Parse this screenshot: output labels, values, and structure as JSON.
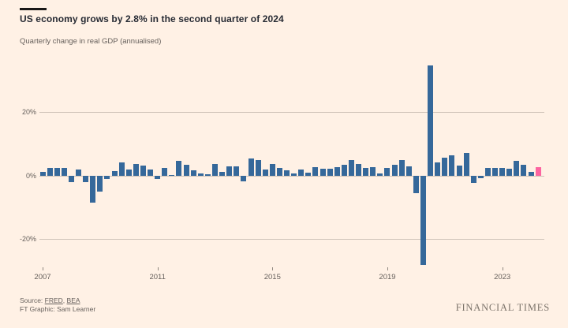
{
  "page": {
    "background_color": "#fff1e5",
    "accent_black": "#1a1817"
  },
  "header": {
    "title": "US economy grows by 2.8% in the second quarter of 2024",
    "subtitle": "Quarterly change in real GDP (annualised)"
  },
  "chart_data": {
    "type": "bar",
    "title": "US economy grows by 2.8% in the second quarter of 2024",
    "subtitle": "Quarterly change in real GDP (annualised)",
    "unit": "%",
    "start_year": 2007,
    "start_quarter": 1,
    "end_label": "2024 Q2",
    "quarters": [
      "2007 Q1",
      "2007 Q2",
      "2007 Q3",
      "2007 Q4",
      "2008 Q1",
      "2008 Q2",
      "2008 Q3",
      "2008 Q4",
      "2009 Q1",
      "2009 Q2",
      "2009 Q3",
      "2009 Q4",
      "2010 Q1",
      "2010 Q2",
      "2010 Q3",
      "2010 Q4",
      "2011 Q1",
      "2011 Q2",
      "2011 Q3",
      "2011 Q4",
      "2012 Q1",
      "2012 Q2",
      "2012 Q3",
      "2012 Q4",
      "2013 Q1",
      "2013 Q2",
      "2013 Q3",
      "2013 Q4",
      "2014 Q1",
      "2014 Q2",
      "2014 Q3",
      "2014 Q4",
      "2015 Q1",
      "2015 Q2",
      "2015 Q3",
      "2015 Q4",
      "2016 Q1",
      "2016 Q2",
      "2016 Q3",
      "2016 Q4",
      "2017 Q1",
      "2017 Q2",
      "2017 Q3",
      "2017 Q4",
      "2018 Q1",
      "2018 Q2",
      "2018 Q3",
      "2018 Q4",
      "2019 Q1",
      "2019 Q2",
      "2019 Q3",
      "2019 Q4",
      "2020 Q1",
      "2020 Q2",
      "2020 Q3",
      "2020 Q4",
      "2021 Q1",
      "2021 Q2",
      "2021 Q3",
      "2021 Q4",
      "2022 Q1",
      "2022 Q2",
      "2022 Q3",
      "2022 Q4",
      "2023 Q1",
      "2023 Q2",
      "2023 Q3",
      "2023 Q4",
      "2024 Q1",
      "2024 Q2"
    ],
    "values": [
      1.2,
      2.4,
      2.5,
      2.4,
      -2.1,
      2.1,
      -2.1,
      -8.5,
      -4.9,
      -1.0,
      1.4,
      4.2,
      2.0,
      3.8,
      3.2,
      2.1,
      -1.1,
      2.6,
      0.2,
      4.7,
      3.4,
      1.8,
      0.7,
      0.5,
      3.6,
      1.3,
      2.9,
      2.9,
      -1.7,
      5.4,
      5.0,
      2.0,
      3.7,
      2.6,
      1.8,
      0.7,
      2.1,
      1.1,
      2.8,
      2.2,
      2.2,
      2.7,
      3.5,
      5.0,
      3.8,
      2.6,
      2.7,
      0.8,
      2.5,
      3.5,
      5.0,
      3.0,
      -5.4,
      -28.1,
      34.8,
      4.3,
      5.6,
      6.4,
      3.3,
      7.1,
      -2.3,
      -0.7,
      2.5,
      2.5,
      2.4,
      2.3,
      4.8,
      3.5,
      1.2,
      2.8
    ],
    "highlight_index": 69,
    "highlight_label": "2024 Q2",
    "highlight_value": 2.8,
    "bar_color": "#35689a",
    "highlight_color": "#fc64a0",
    "gridline_color": "#cfc3b8",
    "yticks": [
      {
        "value": 20,
        "label": "20%"
      },
      {
        "value": 0,
        "label": "0%"
      },
      {
        "value": -20,
        "label": "-20%"
      }
    ],
    "xticks": [
      {
        "year": 2007,
        "label": "2007"
      },
      {
        "year": 2011,
        "label": "2011"
      },
      {
        "year": 2015,
        "label": "2015"
      },
      {
        "year": 2019,
        "label": "2019"
      },
      {
        "year": 2023,
        "label": "2023"
      }
    ],
    "ylim": [
      -30,
      36
    ],
    "grid": true,
    "legend": "none"
  },
  "footer": {
    "source_prefix": "Source: ",
    "source_separator": ", ",
    "links": [
      "FRED",
      "BEA"
    ],
    "credit": "FT Graphic: Sam Learner",
    "brand": "FINANCIAL TIMES"
  }
}
